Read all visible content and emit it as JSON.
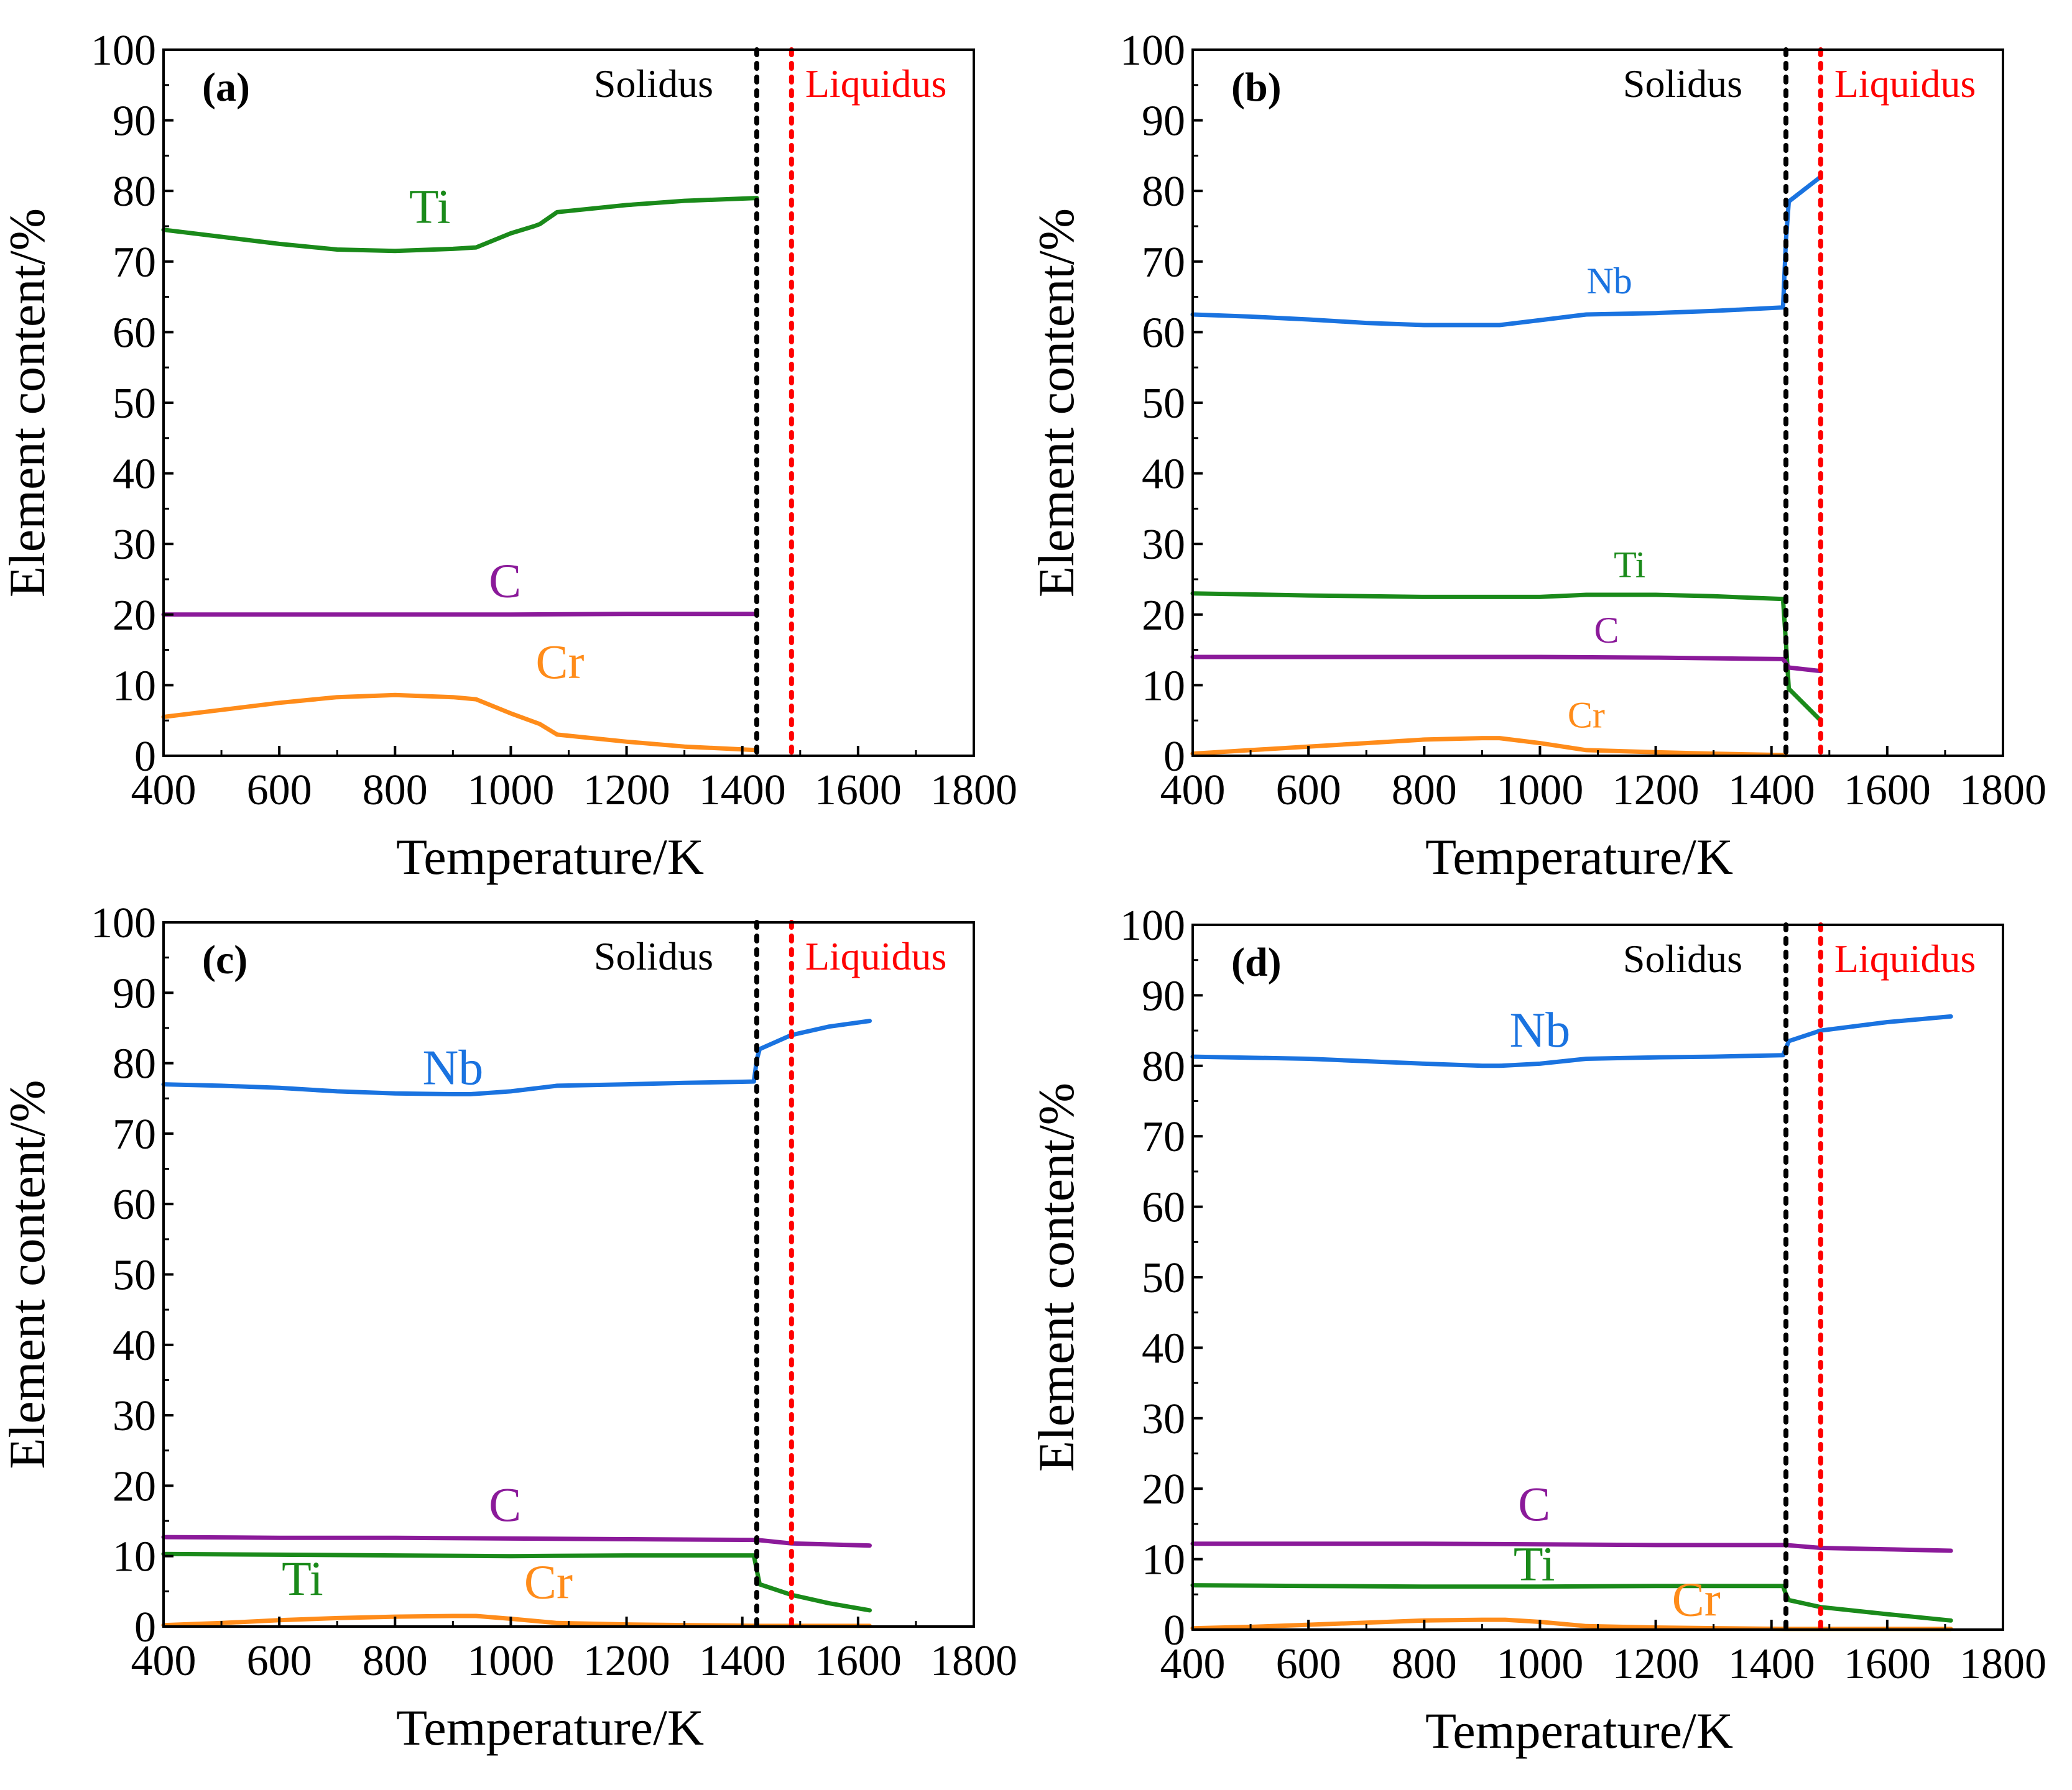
{
  "figure": {
    "background": "#ffffff"
  },
  "chart_data": [
    {
      "type": "line",
      "panel_label": "(a)",
      "xlabel": "Temperature/K",
      "ylabel": "Element content/%",
      "xlim": [
        400,
        1800
      ],
      "ylim": [
        0,
        100
      ],
      "xticks": [
        400,
        600,
        800,
        1000,
        1200,
        1400,
        1600,
        1800
      ],
      "yticks": [
        0,
        10,
        20,
        30,
        40,
        50,
        60,
        70,
        80,
        90,
        100
      ],
      "solidus": {
        "label": "Solidus",
        "x": 1425,
        "color": "#000000"
      },
      "liquidus": {
        "label": "Liquidus",
        "x": 1485,
        "color": "#ff0000"
      },
      "series": [
        {
          "name": "Ti",
          "color": "#1a8a1a",
          "label_at": [
            860,
            75.5
          ],
          "x": [
            400,
            500,
            600,
            700,
            800,
            900,
            940,
            1000,
            1040,
            1050,
            1080,
            1200,
            1300,
            1425
          ],
          "y": [
            74.5,
            73.5,
            72.5,
            71.7,
            71.5,
            71.8,
            72.0,
            74.0,
            75.0,
            75.3,
            77.0,
            78.0,
            78.6,
            79.0
          ]
        },
        {
          "name": "C",
          "color": "#8b1a9a",
          "label_at": [
            990,
            22.5
          ],
          "x": [
            400,
            600,
            800,
            1000,
            1200,
            1425
          ],
          "y": [
            20.0,
            20.0,
            20.0,
            20.0,
            20.1,
            20.1
          ]
        },
        {
          "name": "Cr",
          "color": "#ff8c1a",
          "label_at": [
            1085,
            11.0
          ],
          "x": [
            400,
            500,
            600,
            700,
            800,
            900,
            940,
            1000,
            1050,
            1080,
            1200,
            1300,
            1425
          ],
          "y": [
            5.5,
            6.5,
            7.5,
            8.3,
            8.6,
            8.3,
            8.0,
            6.0,
            4.5,
            3.0,
            2.0,
            1.3,
            0.8
          ]
        }
      ]
    },
    {
      "type": "line",
      "panel_label": "(b)",
      "xlabel": "Temperature/K",
      "ylabel": "Element content/%",
      "xlim": [
        400,
        1800
      ],
      "ylim": [
        0,
        100
      ],
      "xticks": [
        400,
        600,
        800,
        1000,
        1200,
        1400,
        1600,
        1800
      ],
      "yticks": [
        0,
        10,
        20,
        30,
        40,
        50,
        60,
        70,
        80,
        90,
        100
      ],
      "solidus": {
        "label": "Solidus",
        "x": 1425,
        "color": "#000000"
      },
      "liquidus": {
        "label": "Liquidus",
        "x": 1485,
        "color": "#ff0000"
      },
      "series": [
        {
          "name": "Nb",
          "color": "#1a73e0",
          "label_at": [
            1120,
            65.5
          ],
          "x": [
            400,
            500,
            600,
            700,
            800,
            900,
            930,
            1000,
            1080,
            1200,
            1300,
            1420,
            1425,
            1430,
            1485
          ],
          "y": [
            62.5,
            62.2,
            61.8,
            61.3,
            61.0,
            61.0,
            61.0,
            61.7,
            62.5,
            62.7,
            63.0,
            63.5,
            73.0,
            78.5,
            82.0
          ]
        },
        {
          "name": "Ti",
          "color": "#1a8a1a",
          "label_at": [
            1155,
            25.3
          ],
          "x": [
            400,
            600,
            800,
            1000,
            1080,
            1200,
            1300,
            1420,
            1425,
            1430,
            1485
          ],
          "y": [
            23.0,
            22.7,
            22.5,
            22.5,
            22.8,
            22.8,
            22.6,
            22.2,
            16.0,
            9.5,
            5.0
          ]
        },
        {
          "name": "C",
          "color": "#8b1a9a",
          "label_at": [
            1115,
            16.0
          ],
          "x": [
            400,
            600,
            800,
            1000,
            1200,
            1420,
            1430,
            1485
          ],
          "y": [
            14.0,
            14.0,
            14.0,
            14.0,
            13.9,
            13.7,
            12.5,
            12.0
          ]
        },
        {
          "name": "Cr",
          "color": "#ff8c1a",
          "label_at": [
            1080,
            4.0
          ],
          "x": [
            400,
            500,
            600,
            700,
            800,
            900,
            930,
            1000,
            1080,
            1200,
            1300,
            1425
          ],
          "y": [
            0.3,
            0.8,
            1.3,
            1.8,
            2.3,
            2.5,
            2.5,
            1.8,
            0.8,
            0.5,
            0.3,
            0.1
          ]
        }
      ]
    },
    {
      "type": "line",
      "panel_label": "(c)",
      "xlabel": "Temperature/K",
      "ylabel": "Element content/%",
      "xlim": [
        400,
        1800
      ],
      "ylim": [
        0,
        100
      ],
      "xticks": [
        400,
        600,
        800,
        1000,
        1200,
        1400,
        1600,
        1800
      ],
      "yticks": [
        0,
        10,
        20,
        30,
        40,
        50,
        60,
        70,
        80,
        90,
        100
      ],
      "solidus": {
        "label": "Solidus",
        "x": 1425,
        "color": "#000000"
      },
      "liquidus": {
        "label": "Liquidus",
        "x": 1485,
        "color": "#ff0000"
      },
      "series": [
        {
          "name": "Nb",
          "color": "#1a73e0",
          "label_at": [
            900,
            77.0
          ],
          "x": [
            400,
            500,
            600,
            700,
            800,
            900,
            930,
            1000,
            1080,
            1200,
            1300,
            1420,
            1425,
            1430,
            1485,
            1550,
            1620
          ],
          "y": [
            77.0,
            76.8,
            76.5,
            76.0,
            75.7,
            75.6,
            75.6,
            76.0,
            76.8,
            77.0,
            77.2,
            77.4,
            80.5,
            82.0,
            84.0,
            85.2,
            86.0
          ]
        },
        {
          "name": "C",
          "color": "#8b1a9a",
          "label_at": [
            990,
            15.0
          ],
          "x": [
            400,
            600,
            800,
            1000,
            1200,
            1425,
            1485,
            1620
          ],
          "y": [
            12.7,
            12.6,
            12.6,
            12.5,
            12.4,
            12.3,
            11.8,
            11.5
          ]
        },
        {
          "name": "Ti",
          "color": "#1a8a1a",
          "label_at": [
            640,
            4.5
          ],
          "x": [
            400,
            600,
            800,
            1000,
            1200,
            1420,
            1425,
            1430,
            1485,
            1550,
            1620
          ],
          "y": [
            10.3,
            10.2,
            10.1,
            10.0,
            10.1,
            10.1,
            8.0,
            6.0,
            4.5,
            3.3,
            2.3
          ]
        },
        {
          "name": "Cr",
          "color": "#ff8c1a",
          "label_at": [
            1065,
            4.0
          ],
          "x": [
            400,
            500,
            600,
            700,
            800,
            900,
            940,
            1000,
            1080,
            1200,
            1425,
            1620
          ],
          "y": [
            0.2,
            0.5,
            0.9,
            1.2,
            1.4,
            1.5,
            1.5,
            1.1,
            0.5,
            0.3,
            0.1,
            0.1
          ]
        }
      ]
    },
    {
      "type": "line",
      "panel_label": "(d)",
      "xlabel": "Temperature/K",
      "ylabel": "Element content/%",
      "xlim": [
        400,
        1800
      ],
      "ylim": [
        0,
        100
      ],
      "xticks": [
        400,
        600,
        800,
        1000,
        1200,
        1400,
        1600,
        1800
      ],
      "yticks": [
        0,
        10,
        20,
        30,
        40,
        50,
        60,
        70,
        80,
        90,
        100
      ],
      "solidus": {
        "label": "Solidus",
        "x": 1425,
        "color": "#000000"
      },
      "liquidus": {
        "label": "Liquidus",
        "x": 1485,
        "color": "#ff0000"
      },
      "series": [
        {
          "name": "Nb",
          "color": "#1a73e0",
          "label_at": [
            1000,
            82.7
          ],
          "x": [
            400,
            600,
            800,
            900,
            930,
            1000,
            1080,
            1200,
            1300,
            1420,
            1425,
            1430,
            1485,
            1600,
            1710
          ],
          "y": [
            81.3,
            81.0,
            80.3,
            80.0,
            80.0,
            80.3,
            81.0,
            81.2,
            81.3,
            81.5,
            82.5,
            83.5,
            85.0,
            86.2,
            87.0
          ]
        },
        {
          "name": "C",
          "color": "#8b1a9a",
          "label_at": [
            990,
            15.5
          ],
          "x": [
            400,
            600,
            800,
            1000,
            1200,
            1425,
            1485,
            1600,
            1710
          ],
          "y": [
            12.2,
            12.2,
            12.2,
            12.1,
            12.0,
            12.0,
            11.6,
            11.4,
            11.2
          ]
        },
        {
          "name": "Ti",
          "color": "#1a8a1a",
          "label_at": [
            990,
            7.0
          ],
          "x": [
            400,
            600,
            800,
            1000,
            1200,
            1420,
            1425,
            1430,
            1485,
            1600,
            1710
          ],
          "y": [
            6.3,
            6.2,
            6.1,
            6.1,
            6.2,
            6.2,
            5.0,
            4.2,
            3.2,
            2.2,
            1.3
          ]
        },
        {
          "name": "Cr",
          "color": "#ff8c1a",
          "label_at": [
            1270,
            2.0
          ],
          "x": [
            400,
            500,
            600,
            700,
            800,
            900,
            940,
            1000,
            1080,
            1200,
            1425,
            1710
          ],
          "y": [
            0.2,
            0.4,
            0.7,
            1.0,
            1.3,
            1.4,
            1.4,
            1.1,
            0.5,
            0.3,
            0.1,
            0.1
          ]
        }
      ]
    }
  ]
}
